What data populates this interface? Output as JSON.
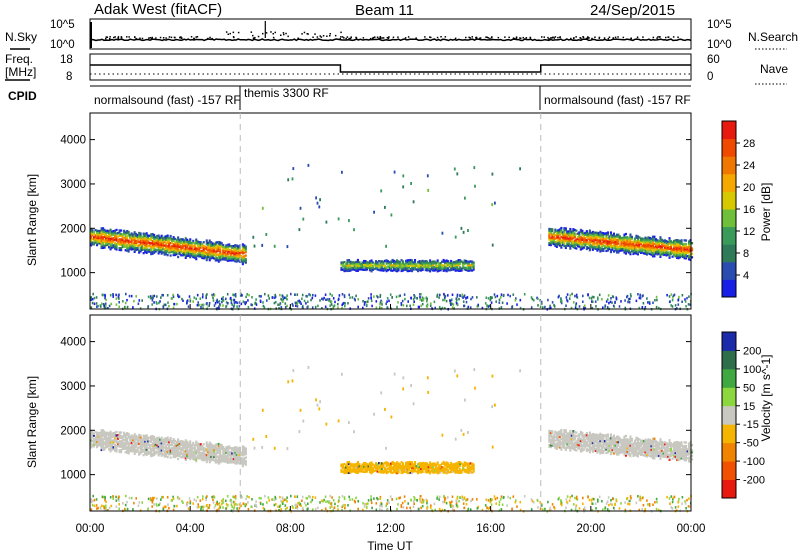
{
  "header": {
    "station": "Adak West (fitACF)",
    "beam": "Beam 11",
    "date": "24/Sep/2015"
  },
  "sky_panel": {
    "left_label": "N.Sky",
    "right_label": "N.Search",
    "left_ticks": [
      "10^5",
      "10^0"
    ],
    "right_ticks": [
      "10^5",
      "10^0"
    ]
  },
  "freq_panel": {
    "left_label_line1": "Freq.",
    "left_label_line2": "[MHz]",
    "right_label": "Nave",
    "left_ticks": [
      "18",
      "8"
    ],
    "right_ticks": [
      "60",
      "0"
    ]
  },
  "cpid": {
    "label": "CPID",
    "segments": [
      {
        "start_hour": 0,
        "end_hour": 6,
        "text": "normalsound (fast) -157 RF"
      },
      {
        "start_hour": 6,
        "end_hour": 18,
        "text": "themis 3300 RF"
      },
      {
        "start_hour": 18,
        "end_hour": 24,
        "text": "normalsound (fast) -157 RF"
      }
    ]
  },
  "chart_data": [
    {
      "type": "heatmap",
      "quantity": "Power",
      "ylabel": "Slant Range [km]",
      "xlabel": "",
      "xlim": [
        0,
        24
      ],
      "ylim": [
        180,
        4600
      ],
      "y_ticks": [
        1000,
        2000,
        3000,
        4000
      ],
      "colorbar": {
        "label": "Power [dB]",
        "range": [
          0,
          32
        ],
        "ticks": [
          "4",
          "8",
          "12",
          "16",
          "20",
          "24",
          "28"
        ],
        "colors": [
          "#1a1fe8",
          "#2a4cb0",
          "#2f7a58",
          "#3a9a5a",
          "#6fbf3a",
          "#d8c800",
          "#f5a800",
          "#f07800",
          "#f04a00",
          "#e81a10"
        ]
      },
      "echo_regions": [
        {
          "t_start": 0.0,
          "t_end": 6.2,
          "center_km_start": 1800,
          "center_km_end": 1400,
          "width_km": 400,
          "peak_db": 30,
          "label": "morning band"
        },
        {
          "t_start": 10.0,
          "t_end": 15.3,
          "center_km_start": 1150,
          "center_km_end": 1150,
          "width_km": 220,
          "peak_db": 18,
          "label": "midday patch"
        },
        {
          "t_start": 18.3,
          "t_end": 24.0,
          "center_km_start": 1800,
          "center_km_end": 1500,
          "width_km": 380,
          "peak_db": 30,
          "label": "evening band"
        }
      ]
    },
    {
      "type": "heatmap",
      "quantity": "Velocity",
      "ylabel": "Slant Range [km]",
      "xlabel": "Time UT",
      "xlim": [
        0,
        24
      ],
      "ylim": [
        180,
        4600
      ],
      "x_ticks": [
        "00:00",
        "04:00",
        "08:00",
        "12:00",
        "16:00",
        "20:00",
        "00:00"
      ],
      "y_ticks": [
        1000,
        2000,
        3000,
        4000
      ],
      "colorbar": {
        "label": "Velocity [m s^-1]",
        "ticks": [
          "200",
          "100",
          "50",
          "15",
          "-15",
          "-50",
          "-100",
          "-200"
        ],
        "colors": [
          "#1a2aa8",
          "#2f6e4a",
          "#3fa840",
          "#8cd640",
          "#c8c8c0",
          "#f5b400",
          "#f08400",
          "#f05000",
          "#e81a10"
        ]
      },
      "echo_regions": [
        {
          "t_start": 0.0,
          "t_end": 6.2,
          "velocity": "ground scatter",
          "color": "#c8c8c0"
        },
        {
          "t_start": 10.0,
          "t_end": 15.3,
          "velocity": "-15 to -50",
          "color": "#f5b400"
        },
        {
          "t_start": 18.3,
          "t_end": 24.0,
          "velocity": "ground scatter",
          "color": "#c8c8c0"
        }
      ]
    }
  ]
}
